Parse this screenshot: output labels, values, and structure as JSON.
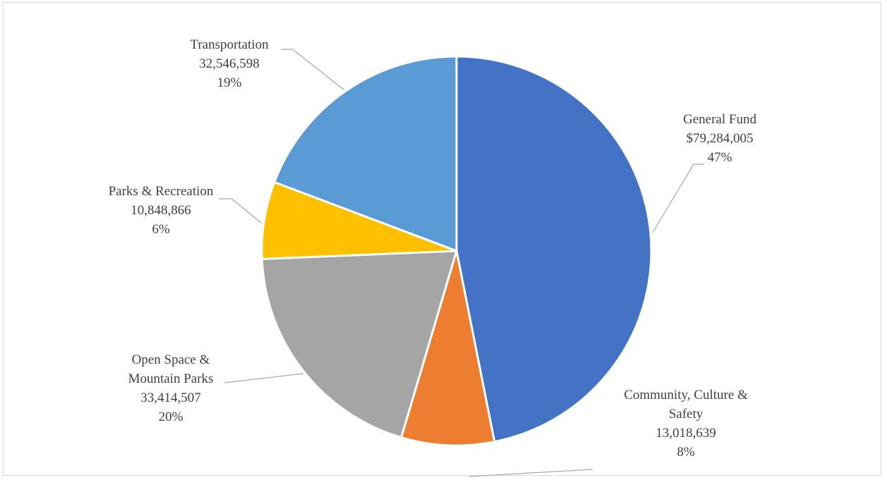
{
  "chart_data": {
    "type": "pie",
    "title": "",
    "legend": "none",
    "slices": [
      {
        "name": "General Fund",
        "value": 79284005,
        "value_label": "$79,284,005",
        "percent_label": "47%",
        "color": "#4472c4"
      },
      {
        "name": "Community, Culture & Safety",
        "name_lines": [
          "Community, Culture &",
          "Safety"
        ],
        "value": 13018639,
        "value_label": "13,018,639",
        "percent_label": "8%",
        "color": "#ed7d31"
      },
      {
        "name": "Open Space & Mountain Parks",
        "name_lines": [
          "Open Space &",
          "Mountain Parks"
        ],
        "value": 33414507,
        "value_label": "33,414,507",
        "percent_label": "20%",
        "color": "#a5a5a5"
      },
      {
        "name": "Parks & Recreation",
        "value": 10848866,
        "value_label": "10,848,866",
        "percent_label": "6%",
        "color": "#ffc000"
      },
      {
        "name": "Transportation",
        "value": 32546598,
        "value_label": "32,546,598",
        "percent_label": "19%",
        "color": "#5b9bd5"
      }
    ]
  }
}
